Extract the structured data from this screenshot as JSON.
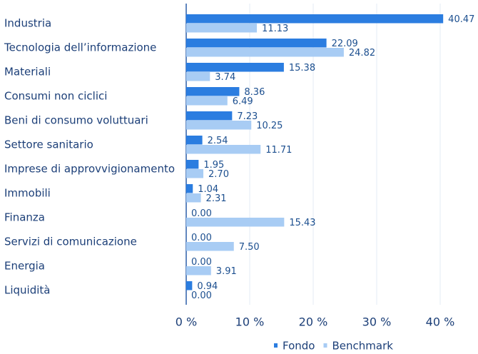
{
  "chart_data": {
    "type": "hbar",
    "categories": [
      "Industria",
      "Tecnologia dell’informazione",
      "Materiali",
      "Consumi non ciclici",
      "Beni di consumo voluttuari",
      "Settore sanitario",
      "Imprese di approvvigionamento",
      "Immobili",
      "Finanza",
      "Servizi di comunicazione",
      "Energia",
      "Liquidità"
    ],
    "series": [
      {
        "name": "Fondo",
        "color": "#2b7de0",
        "values": [
          40.47,
          22.09,
          15.38,
          8.36,
          7.23,
          2.54,
          1.95,
          1.04,
          0,
          0,
          0,
          0.94
        ],
        "value_labels": [
          "40.47",
          "22.09",
          "15.38",
          "8.36",
          "7.23",
          "2.54",
          "1.95",
          "1.04",
          "0.00",
          "0.00",
          "0.00",
          "0.94"
        ]
      },
      {
        "name": "Benchmark",
        "color": "#a8ccf4",
        "values": [
          11.13,
          24.82,
          3.74,
          6.49,
          10.25,
          11.71,
          2.7,
          2.31,
          15.43,
          7.5,
          3.91,
          0
        ],
        "value_labels": [
          "11.13",
          "24.82",
          "3.74",
          "6.49",
          "10.25",
          "11.71",
          "2.70",
          "2.31",
          "15.43",
          "7.50",
          "3.91",
          "0.00"
        ]
      }
    ],
    "xlim": [
      0,
      45
    ],
    "xticks": [
      {
        "value": 0,
        "label": "0 %"
      },
      {
        "value": 10,
        "label": "10 %"
      },
      {
        "value": 20,
        "label": "20 %"
      },
      {
        "value": 30,
        "label": "30 %"
      },
      {
        "value": 40,
        "label": "40 %"
      }
    ],
    "grid": true,
    "legend": "bottom"
  }
}
